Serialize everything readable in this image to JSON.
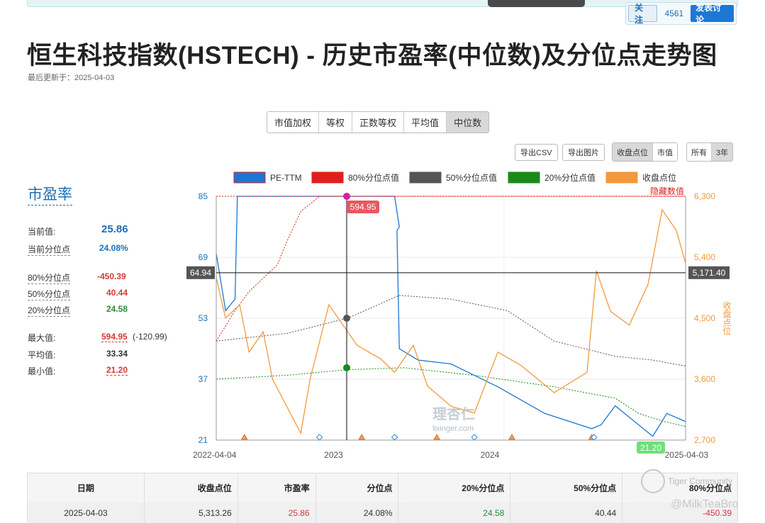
{
  "header": {
    "follow_label": "关注",
    "follow_count": "4561",
    "discuss_label": "发表讨论"
  },
  "page": {
    "title": "恒生科技指数(HSTECH) - 历史市盈率(中位数)及分位点走势图",
    "updated": "最后更新于：2025-04-03"
  },
  "method_tabs": [
    "市值加权",
    "等权",
    "正数等权",
    "平均值",
    "中位数"
  ],
  "active_method": 4,
  "tools": {
    "export_csv": "导出CSV",
    "export_img": "导出图片",
    "overlay": [
      "收盘点位",
      "市值"
    ],
    "overlay_active": 0,
    "range": [
      "所有",
      "3年"
    ],
    "range_active": 1
  },
  "side": {
    "title": "市盈率",
    "current_label": "当前值:",
    "current_value": "25.86",
    "current_pct_label": "当前分位点",
    "current_pct_value": "24.08%",
    "p80_label": "80%分位点",
    "p80_value": "-450.39",
    "p50_label": "50%分位点",
    "p50_value": "40.44",
    "p20_label": "20%分位点",
    "p20_value": "24.58",
    "max_label": "最大值:",
    "max_value": "594.95",
    "max_extra": "(-120.99)",
    "avg_label": "平均值:",
    "avg_value": "33.34",
    "min_label": "最小值:",
    "min_value": "21.20"
  },
  "colors": {
    "pe": "#1a78d4",
    "p80": "#e0201a",
    "p50": "#555555",
    "p20": "#1a8a1a",
    "close": "#f29a3a",
    "accent": "#1d6fb6"
  },
  "chart_data": {
    "type": "line",
    "legend": [
      "PE-TTM",
      "80%分位点值",
      "50%分位点值",
      "20%分位点值",
      "收盘点位"
    ],
    "hidden_label": "隐藏数值",
    "y_left_ticks": [
      "85",
      "69",
      "53",
      "37",
      "21"
    ],
    "y_left_range": [
      21,
      85
    ],
    "y_right_ticks": [
      "6,300",
      "5,400",
      "4,500",
      "3,600",
      "2,700"
    ],
    "y_right_range": [
      2700,
      6300
    ],
    "y_right_label": "收盘点位",
    "x_ticks": [
      "2022-04-04",
      "2023",
      "2024",
      "2025-04-03"
    ],
    "crosshair_y_label": "64.94",
    "crosshair_right_label": "5,171.40",
    "tooltip_pe": "594.95",
    "min_badge": "21.20",
    "series": [
      {
        "name": "PE-TTM",
        "points": [
          [
            0,
            70
          ],
          [
            0.02,
            55
          ],
          [
            0.04,
            58
          ],
          [
            0.045,
            85
          ],
          [
            0.27,
            85
          ],
          [
            0.38,
            85
          ],
          [
            0.39,
            77
          ],
          [
            0.385,
            76
          ],
          [
            0.39,
            45
          ],
          [
            0.43,
            42
          ],
          [
            0.5,
            41
          ],
          [
            0.6,
            35
          ],
          [
            0.7,
            28
          ],
          [
            0.8,
            24
          ],
          [
            0.82,
            25
          ],
          [
            0.85,
            30
          ],
          [
            0.9,
            25
          ],
          [
            0.93,
            22
          ],
          [
            0.96,
            28
          ],
          [
            1.0,
            25.86
          ]
        ]
      },
      {
        "name": "80%分位点值",
        "points": [
          [
            0,
            47
          ],
          [
            0.04,
            55
          ],
          [
            0.07,
            60
          ],
          [
            0.13,
            67
          ],
          [
            0.15,
            73
          ],
          [
            0.18,
            81
          ],
          [
            0.22,
            85
          ],
          [
            1.0,
            85
          ]
        ]
      },
      {
        "name": "50%分位点值",
        "points": [
          [
            0,
            47
          ],
          [
            0.15,
            49
          ],
          [
            0.28,
            53
          ],
          [
            0.39,
            59
          ],
          [
            0.5,
            58
          ],
          [
            0.62,
            55
          ],
          [
            0.72,
            47
          ],
          [
            0.85,
            43
          ],
          [
            0.93,
            42
          ],
          [
            1.0,
            40.44
          ]
        ]
      },
      {
        "name": "20%分位点值",
        "points": [
          [
            0,
            37
          ],
          [
            0.15,
            38
          ],
          [
            0.28,
            39.5
          ],
          [
            0.4,
            40
          ],
          [
            0.55,
            38
          ],
          [
            0.72,
            35
          ],
          [
            0.85,
            32
          ],
          [
            0.9,
            28
          ],
          [
            0.95,
            26
          ],
          [
            1.0,
            24.58
          ]
        ]
      },
      {
        "name": "收盘点位",
        "points": [
          [
            0,
            5100
          ],
          [
            0.02,
            4500
          ],
          [
            0.05,
            4700
          ],
          [
            0.07,
            4000
          ],
          [
            0.1,
            4300
          ],
          [
            0.12,
            3600
          ],
          [
            0.18,
            2800
          ],
          [
            0.2,
            3600
          ],
          [
            0.24,
            4700
          ],
          [
            0.26,
            4500
          ],
          [
            0.28,
            4300
          ],
          [
            0.3,
            4100
          ],
          [
            0.35,
            3900
          ],
          [
            0.38,
            3700
          ],
          [
            0.42,
            4100
          ],
          [
            0.45,
            3500
          ],
          [
            0.5,
            3200
          ],
          [
            0.55,
            3100
          ],
          [
            0.6,
            4000
          ],
          [
            0.65,
            3800
          ],
          [
            0.72,
            3400
          ],
          [
            0.79,
            3700
          ],
          [
            0.81,
            5200
          ],
          [
            0.84,
            4600
          ],
          [
            0.88,
            4400
          ],
          [
            0.92,
            5000
          ],
          [
            0.95,
            6100
          ],
          [
            0.98,
            5800
          ],
          [
            1.0,
            5313.26
          ]
        ]
      }
    ]
  },
  "table": {
    "headers": [
      "日期",
      "收盘点位",
      "市盈率",
      "分位点",
      "20%分位点",
      "50%分位点",
      "80%分位点"
    ],
    "row": [
      "2025-04-03",
      "5,313.26",
      "25.86",
      "24.08%",
      "24.58",
      "40.44",
      "-450.39"
    ]
  },
  "watermarks": {
    "chart": "理杏仁",
    "chart_url": "lixinger.com",
    "community": "Tiger Community",
    "user": "@MilkTeaBro"
  }
}
